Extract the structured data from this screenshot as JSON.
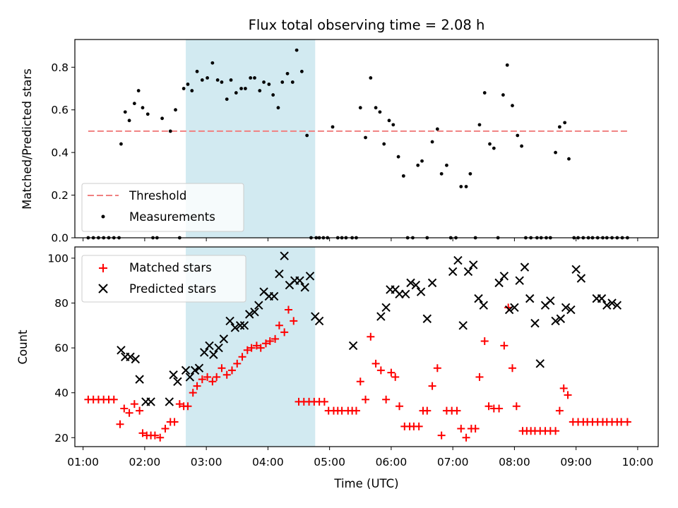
{
  "chart_data": [
    {
      "type": "scatter",
      "title": "Flux total observing time = 2.08 h",
      "xlabel": "",
      "ylabel": "Matched/Predicted stars",
      "ylim": [
        0,
        0.93
      ],
      "yticks": [
        "0.0",
        "0.2",
        "0.4",
        "0.6",
        "0.8"
      ],
      "xlim": [
        "00:52",
        "10:20"
      ],
      "shaded_span": {
        "x0": "02:40",
        "x1": "04:46",
        "color": "#add8e6"
      },
      "threshold": {
        "name": "Threshold",
        "y": 0.5,
        "x0": "01:05",
        "x1": "09:52",
        "color": "#f08080"
      },
      "legend": {
        "loc": "lower left",
        "entries": [
          "Threshold",
          "Measurements"
        ]
      },
      "series": [
        {
          "name": "Measurements",
          "color": "#000000",
          "x": [
            "01:05",
            "01:10",
            "01:15",
            "01:20",
            "01:25",
            "01:30",
            "01:35",
            "01:37",
            "01:41",
            "01:45",
            "01:50",
            "01:54",
            "01:58",
            "02:03",
            "02:08",
            "02:12",
            "02:17",
            "02:25",
            "02:30",
            "02:34",
            "02:38",
            "02:42",
            "02:46",
            "02:51",
            "02:56",
            "03:01",
            "03:06",
            "03:11",
            "03:15",
            "03:20",
            "03:24",
            "03:29",
            "03:34",
            "03:38",
            "03:43",
            "03:47",
            "03:52",
            "03:56",
            "04:01",
            "04:05",
            "04:10",
            "04:14",
            "04:19",
            "04:24",
            "04:28",
            "04:33",
            "04:38",
            "04:42",
            "04:47",
            "04:50",
            "04:54",
            "04:58",
            "05:03",
            "05:08",
            "05:12",
            "05:16",
            "05:22",
            "05:26",
            "05:30",
            "05:35",
            "05:40",
            "05:45",
            "05:49",
            "05:53",
            "05:58",
            "06:02",
            "06:07",
            "06:12",
            "06:16",
            "06:21",
            "06:26",
            "06:30",
            "06:35",
            "06:40",
            "06:45",
            "06:49",
            "06:54",
            "06:58",
            "07:03",
            "07:08",
            "07:13",
            "07:17",
            "07:22",
            "07:26",
            "07:31",
            "07:36",
            "07:40",
            "07:44",
            "07:49",
            "07:53",
            "07:58",
            "08:03",
            "08:07",
            "08:11",
            "08:16",
            "08:22",
            "08:26",
            "08:31",
            "08:35",
            "08:40",
            "08:44",
            "08:49",
            "08:53",
            "08:58",
            "09:02",
            "09:07",
            "09:12",
            "09:16",
            "09:21",
            "09:26",
            "09:30",
            "09:35",
            "09:40",
            "09:45",
            "09:50"
          ],
          "y": [
            0,
            0,
            0,
            0,
            0,
            0,
            0,
            0.44,
            0.59,
            0.55,
            0.63,
            0.69,
            0.61,
            0.58,
            0,
            0,
            0.56,
            0.5,
            0.6,
            0,
            0.7,
            0.72,
            0.69,
            0.78,
            0.74,
            0.75,
            0.82,
            0.74,
            0.73,
            0.65,
            0.74,
            0.68,
            0.7,
            0.7,
            0.75,
            0.75,
            0.69,
            0.73,
            0.72,
            0.67,
            0.61,
            0.73,
            0.77,
            0.73,
            0.88,
            0.78,
            0.48,
            0,
            0,
            0,
            0,
            0,
            0.52,
            0,
            0,
            0,
            0,
            0,
            0.61,
            0.47,
            0.75,
            0.61,
            0.59,
            0.44,
            0.55,
            0.53,
            0.38,
            0.29,
            0,
            0,
            0.34,
            0.36,
            0,
            0.45,
            0.51,
            0.3,
            0.34,
            0,
            0,
            0.24,
            0.24,
            0.3,
            0,
            0.53,
            0.68,
            0.44,
            0.42,
            0,
            0.67,
            0.81,
            0.62,
            0.48,
            0.43,
            0,
            0,
            0,
            0,
            0,
            0,
            0.4,
            0.52,
            0.54,
            0.37,
            0,
            0,
            0,
            0,
            0,
            0,
            0,
            0,
            0,
            0,
            0,
            0
          ]
        }
      ]
    },
    {
      "type": "scatter",
      "title": "",
      "xlabel": "Time (UTC)",
      "ylabel": "Count",
      "ylim": [
        16,
        105
      ],
      "yticks": [
        "20",
        "40",
        "60",
        "80",
        "100"
      ],
      "xlim": [
        "00:52",
        "10:20"
      ],
      "xticks": [
        "01:00",
        "02:00",
        "03:00",
        "04:00",
        "05:00",
        "06:00",
        "07:00",
        "08:00",
        "09:00",
        "10:00"
      ],
      "shaded_span": {
        "x0": "02:40",
        "x1": "04:46",
        "color": "#add8e6"
      },
      "legend": {
        "loc": "upper left",
        "entries": [
          "Matched stars",
          "Predicted stars"
        ]
      },
      "series": [
        {
          "name": "Matched stars",
          "marker": "+",
          "color": "#ff0000",
          "x": [
            "01:05",
            "01:10",
            "01:15",
            "01:20",
            "01:25",
            "01:30",
            "01:36",
            "01:40",
            "01:45",
            "01:50",
            "01:55",
            "01:58",
            "02:02",
            "02:06",
            "02:10",
            "02:15",
            "02:20",
            "02:25",
            "02:29",
            "02:34",
            "02:38",
            "02:42",
            "02:47",
            "02:51",
            "02:56",
            "03:01",
            "03:06",
            "03:10",
            "03:15",
            "03:20",
            "03:25",
            "03:30",
            "03:35",
            "03:40",
            "03:44",
            "03:49",
            "03:53",
            "03:58",
            "04:02",
            "04:07",
            "04:11",
            "04:16",
            "04:20",
            "04:25",
            "04:30",
            "04:35",
            "04:40",
            "04:45",
            "04:50",
            "04:55",
            "04:59",
            "05:04",
            "05:08",
            "05:12",
            "05:18",
            "05:22",
            "05:26",
            "05:30",
            "05:35",
            "05:40",
            "05:45",
            "05:50",
            "05:55",
            "06:00",
            "06:04",
            "06:08",
            "06:13",
            "06:18",
            "06:22",
            "06:27",
            "06:31",
            "06:35",
            "06:40",
            "06:45",
            "06:49",
            "06:54",
            "06:59",
            "07:04",
            "07:08",
            "07:13",
            "07:18",
            "07:22",
            "07:26",
            "07:31",
            "07:35",
            "07:40",
            "07:45",
            "07:50",
            "07:54",
            "07:58",
            "08:02",
            "08:08",
            "08:12",
            "08:16",
            "08:20",
            "08:25",
            "08:30",
            "08:35",
            "08:40",
            "08:44",
            "08:48",
            "08:52",
            "08:57",
            "09:02",
            "09:07",
            "09:11",
            "09:16",
            "09:21",
            "09:26",
            "09:30",
            "09:35",
            "09:40",
            "09:44",
            "09:50"
          ],
          "y": [
            37,
            37,
            37,
            37,
            37,
            37,
            26,
            33,
            31,
            35,
            32,
            22,
            21,
            21,
            21,
            20,
            24,
            27,
            27,
            35,
            34,
            34,
            40,
            43,
            46,
            47,
            45,
            47,
            51,
            48,
            50,
            53,
            56,
            59,
            60,
            61,
            60,
            62,
            63,
            64,
            70,
            67,
            77,
            72,
            36,
            36,
            36,
            36,
            36,
            36,
            32,
            32,
            32,
            32,
            32,
            32,
            32,
            45,
            37,
            65,
            53,
            50,
            37,
            49,
            47,
            34,
            25,
            25,
            25,
            25,
            32,
            32,
            43,
            51,
            21,
            32,
            32,
            32,
            24,
            20,
            24,
            24,
            47,
            63,
            34,
            33,
            33,
            61,
            78,
            51,
            34,
            23,
            23,
            23,
            23,
            23,
            23,
            23,
            23,
            32,
            42,
            39,
            27,
            27,
            27,
            27,
            27,
            27,
            27,
            27,
            27,
            27,
            27,
            27
          ]
        },
        {
          "name": "Predicted stars",
          "marker": "x",
          "color": "#000000",
          "x": [
            "01:37",
            "01:41",
            "01:46",
            "01:51",
            "01:55",
            "02:01",
            "02:06",
            "02:24",
            "02:28",
            "02:32",
            "02:40",
            "02:44",
            "02:49",
            "02:53",
            "02:58",
            "03:03",
            "03:07",
            "03:12",
            "03:17",
            "03:23",
            "03:28",
            "03:33",
            "03:37",
            "03:42",
            "03:47",
            "03:51",
            "03:56",
            "04:01",
            "04:06",
            "04:11",
            "04:16",
            "04:21",
            "04:26",
            "04:31",
            "04:36",
            "04:41",
            "04:46",
            "04:50",
            "05:23",
            "05:50",
            "05:55",
            "05:59",
            "06:04",
            "06:08",
            "06:14",
            "06:19",
            "06:24",
            "06:29",
            "06:35",
            "06:40",
            "07:00",
            "07:05",
            "07:10",
            "07:15",
            "07:20",
            "07:25",
            "07:30",
            "07:45",
            "07:50",
            "07:55",
            "08:00",
            "08:05",
            "08:10",
            "08:15",
            "08:20",
            "08:25",
            "08:30",
            "08:35",
            "08:40",
            "08:45",
            "08:50",
            "08:55",
            "09:00",
            "09:05",
            "09:20",
            "09:25",
            "09:30",
            "09:35",
            "09:40"
          ],
          "y": [
            59,
            56,
            56,
            55,
            46,
            36,
            36,
            36,
            48,
            45,
            50,
            47,
            50,
            51,
            58,
            61,
            57,
            60,
            64,
            72,
            69,
            70,
            70,
            75,
            76,
            79,
            85,
            83,
            83,
            93,
            101,
            88,
            90,
            90,
            87,
            92,
            74,
            72,
            61,
            74,
            78,
            86,
            86,
            84,
            84,
            89,
            88,
            85,
            73,
            89,
            94,
            99,
            70,
            94,
            97,
            82,
            79,
            89,
            92,
            77,
            78,
            90,
            96,
            82,
            71,
            53,
            79,
            81,
            72,
            73,
            78,
            77,
            95,
            91,
            82,
            82,
            79,
            80,
            79
          ]
        }
      ]
    }
  ]
}
